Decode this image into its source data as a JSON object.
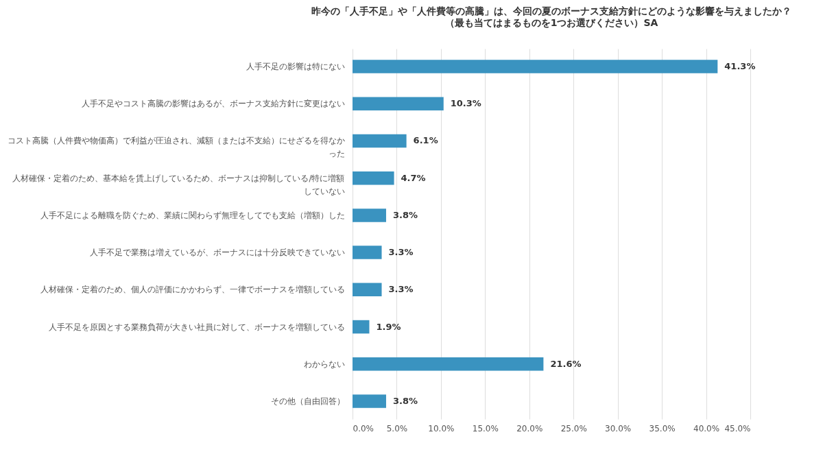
{
  "chart_data": {
    "type": "bar",
    "orientation": "horizontal",
    "title": "昨今の「人手不足」や「人件費等の高騰」は、今回の夏のボーナス支給方針にどのような影響を与えましたか？",
    "subtitle": "（最も当てはまるものを1つお選びください）SA",
    "categories": [
      "人手不足の影響は特にない",
      "人手不足やコスト高騰の影響はあるが、ボーナス支給方針に変更はない",
      "コスト高騰（人件費や物価高）で利益が圧迫され、減額（または不支給）にせざるを得なかった",
      "人材確保・定着のため、基本給を賃上げしているため、ボーナスは抑制している/特に増額していない",
      "人手不足による離職を防ぐため、業績に関わらず無理をしてでも支給（増額）した",
      "人手不足で業務は増えているが、ボーナスには十分反映できていない",
      "人材確保・定着のため、個人の評価にかかわらず、一律でボーナスを増額している",
      "人手不足を原因とする業務負荷が大きい社員に対して、ボーナスを増額している",
      "わからない",
      "その他（自由回答）"
    ],
    "values": [
      41.3,
      10.3,
      6.1,
      4.7,
      3.8,
      3.3,
      3.3,
      1.9,
      21.6,
      3.8
    ],
    "value_labels": [
      "41.3%",
      "10.3%",
      "6.1%",
      "4.7%",
      "3.8%",
      "3.3%",
      "3.3%",
      "1.9%",
      "21.6%",
      "3.8%"
    ],
    "color": "#3a93c0",
    "xlim": [
      0,
      45
    ],
    "xticks": [
      {
        "value": 0,
        "label": "0.0%"
      },
      {
        "value": 5,
        "label": "5.0%"
      },
      {
        "value": 10,
        "label": "10.0%"
      },
      {
        "value": 15,
        "label": "15.0%"
      },
      {
        "value": 20,
        "label": "20.0%"
      },
      {
        "value": 25,
        "label": "25.0%"
      },
      {
        "value": 30,
        "label": "30.0%"
      },
      {
        "value": 35,
        "label": "35.0%"
      },
      {
        "value": 40,
        "label": "40.0%"
      },
      {
        "value": 45,
        "label": "45.0%"
      }
    ],
    "grid": "x"
  }
}
